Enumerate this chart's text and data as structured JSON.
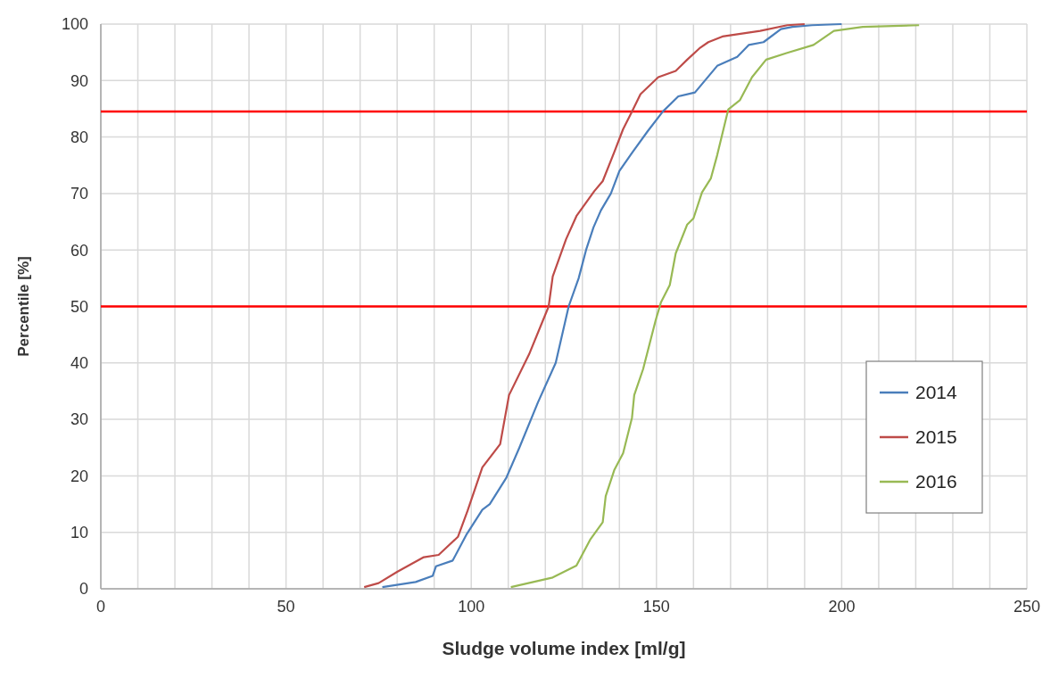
{
  "chart_data": {
    "type": "line",
    "xlabel": "Sludge volume index [ml/g]",
    "ylabel": "Percentile [%]",
    "xlim": [
      0,
      250
    ],
    "ylim": [
      0,
      100
    ],
    "xticks": [
      0,
      {
        "value": 10,
        "label": null
      },
      {
        "value": 20,
        "label": null
      },
      {
        "value": 30,
        "label": null
      },
      {
        "value": 40,
        "label": null
      },
      50,
      {
        "value": 60,
        "label": null
      },
      {
        "value": 70,
        "label": null
      },
      {
        "value": 80,
        "label": null
      },
      {
        "value": 90,
        "label": null
      },
      100,
      {
        "value": 110,
        "label": null
      },
      {
        "value": 120,
        "label": null
      },
      {
        "value": 130,
        "label": null
      },
      {
        "value": 140,
        "label": null
      },
      150,
      {
        "value": 160,
        "label": null
      },
      {
        "value": 170,
        "label": null
      },
      {
        "value": 180,
        "label": null
      },
      {
        "value": 190,
        "label": null
      },
      200,
      {
        "value": 210,
        "label": null
      },
      {
        "value": 220,
        "label": null
      },
      {
        "value": 230,
        "label": null
      },
      {
        "value": 240,
        "label": null
      },
      250
    ],
    "yticks": [
      0,
      10,
      20,
      30,
      40,
      50,
      60,
      70,
      80,
      90,
      100
    ],
    "grid": true,
    "legend": "bottom right",
    "marker": "none",
    "line_style": "solid",
    "ref_lines": [
      {
        "axis": "y",
        "value": 84.5,
        "color": "#ff0000"
      },
      {
        "axis": "y",
        "value": 50,
        "color": "#ff0000"
      }
    ],
    "series": [
      {
        "name": "2014",
        "color": "#4a7ebb",
        "x": [
          76,
          85,
          89.6,
          90.5,
          95,
          98.8,
          103,
          105,
          109.5,
          113,
          118,
          122.8,
          126.3,
          129,
          131,
          133,
          135,
          137.7,
          140,
          143.4,
          147.6,
          151.7,
          155.9,
          160.4,
          166.4,
          171.8,
          174.9,
          178.9,
          183.6,
          186.7,
          192,
          200
        ],
        "values": [
          0.3,
          1.2,
          2.3,
          4,
          5,
          9.7,
          14,
          15,
          19.7,
          25,
          33,
          40,
          50,
          55,
          60,
          64,
          67,
          70,
          74,
          77.2,
          81,
          84.5,
          87.2,
          87.9,
          92.6,
          94.2,
          96.3,
          96.8,
          99.1,
          99.5,
          99.8,
          100
        ]
      },
      {
        "name": "2015",
        "color": "#be4b48",
        "x": [
          71.1,
          75,
          80,
          87.2,
          91.2,
          96.4,
          99,
          103,
          107.8,
          110.2,
          115.6,
          120.9,
          122,
          125.6,
          128.4,
          133.2,
          135.5,
          138.6,
          141,
          143.4,
          145.7,
          150.5,
          155.2,
          158.3,
          161.6,
          164,
          167.8,
          178,
          185.3,
          190
        ],
        "values": [
          0.3,
          1,
          3,
          5.6,
          6,
          9.2,
          13.8,
          21.5,
          25.6,
          34.3,
          41.5,
          50,
          55.3,
          61.9,
          66,
          70.4,
          72.2,
          77.3,
          81.4,
          84.5,
          87.6,
          90.6,
          91.7,
          93.7,
          95.7,
          96.8,
          97.8,
          98.8,
          99.8,
          100
        ]
      },
      {
        "name": "2016",
        "color": "#98b954",
        "x": [
          110.7,
          122,
          128.4,
          132.2,
          135.5,
          136.3,
          138.6,
          141,
          143.4,
          144,
          146.4,
          149.8,
          151.2,
          153.6,
          155.2,
          158.3,
          160,
          162.3,
          164.7,
          166.4,
          169.4,
          172.5,
          175.8,
          179.6,
          185.3,
          192.4,
          197.9,
          205.7,
          220.9
        ],
        "values": [
          0.3,
          2,
          4.1,
          8.8,
          11.8,
          16.4,
          21,
          24,
          30.3,
          34.3,
          38.9,
          47.6,
          50.7,
          53.8,
          59.4,
          64.5,
          65.6,
          70.2,
          72.7,
          76.8,
          84.9,
          86.5,
          90.6,
          93.7,
          94.9,
          96.3,
          98.8,
          99.5,
          99.8
        ]
      }
    ]
  }
}
